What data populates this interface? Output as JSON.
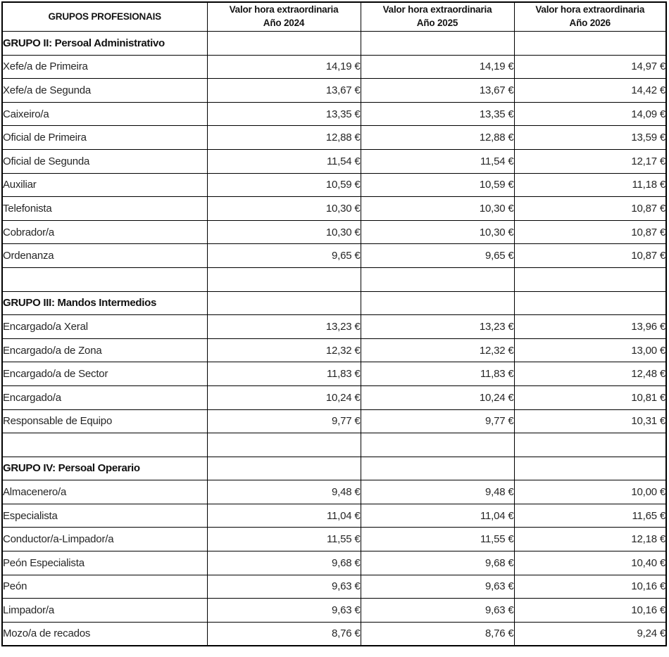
{
  "table": {
    "columns": [
      {
        "key": "profession",
        "line1": "GRUPOS PROFESIONAIS",
        "line2": ""
      },
      {
        "key": "y2024",
        "line1": "Valor hora extraordinaria",
        "line2": "Año 2024"
      },
      {
        "key": "y2025",
        "line1": "Valor hora extraordinaria",
        "line2": "Año 2025"
      },
      {
        "key": "y2026",
        "line1": "Valor hora extraordinaria",
        "line2": "Año 2026"
      }
    ],
    "rows": [
      {
        "type": "section",
        "label": "GRUPO II: Persoal Administrativo",
        "values": [
          "",
          "",
          ""
        ]
      },
      {
        "type": "data",
        "label": "Xefe/a de Primeira",
        "values": [
          "14,19 €",
          "14,19 €",
          "14,97 €"
        ]
      },
      {
        "type": "data",
        "label": "Xefe/a de Segunda",
        "values": [
          "13,67 €",
          "13,67 €",
          "14,42 €"
        ]
      },
      {
        "type": "data",
        "label": "Caixeiro/a",
        "values": [
          "13,35 €",
          "13,35 €",
          "14,09 €"
        ]
      },
      {
        "type": "data",
        "label": "Oficial de Primeira",
        "values": [
          "12,88 €",
          "12,88 €",
          "13,59 €"
        ]
      },
      {
        "type": "data",
        "label": "Oficial de Segunda",
        "values": [
          "11,54 €",
          "11,54 €",
          "12,17 €"
        ]
      },
      {
        "type": "data",
        "label": "Auxiliar",
        "values": [
          "10,59 €",
          "10,59 €",
          "11,18 €"
        ]
      },
      {
        "type": "data",
        "label": "Telefonista",
        "values": [
          "10,30 €",
          "10,30 €",
          "10,87 €"
        ]
      },
      {
        "type": "data",
        "label": "Cobrador/a",
        "values": [
          "10,30 €",
          "10,30 €",
          "10,87 €"
        ]
      },
      {
        "type": "data",
        "label": "Ordenanza",
        "values": [
          "9,65 €",
          "9,65 €",
          "10,87 €"
        ]
      },
      {
        "type": "spacer",
        "label": "",
        "values": [
          "",
          "",
          ""
        ]
      },
      {
        "type": "section",
        "label": "GRUPO III: Mandos Intermedios",
        "values": [
          "",
          "",
          ""
        ]
      },
      {
        "type": "data",
        "label": "Encargado/a Xeral",
        "values": [
          "13,23 €",
          "13,23 €",
          "13,96 €"
        ]
      },
      {
        "type": "data",
        "label": "Encargado/a de Zona",
        "values": [
          "12,32 €",
          "12,32 €",
          "13,00 €"
        ]
      },
      {
        "type": "data",
        "label": "Encargado/a de Sector",
        "values": [
          "11,83 €",
          "11,83 €",
          "12,48 €"
        ]
      },
      {
        "type": "data",
        "label": "Encargado/a",
        "values": [
          "10,24 €",
          "10,24 €",
          "10,81 €"
        ]
      },
      {
        "type": "data",
        "label": "Responsable de Equipo",
        "values": [
          "9,77 €",
          "9,77 €",
          "10,31 €"
        ]
      },
      {
        "type": "spacer",
        "label": "",
        "values": [
          "",
          "",
          ""
        ]
      },
      {
        "type": "section",
        "label": "GRUPO IV: Persoal Operario",
        "values": [
          "",
          "",
          ""
        ]
      },
      {
        "type": "data",
        "label": "Almacenero/a",
        "values": [
          "9,48 €",
          "9,48 €",
          "10,00 €"
        ]
      },
      {
        "type": "data",
        "label": "Especialista",
        "values": [
          "11,04 €",
          "11,04 €",
          "11,65 €"
        ]
      },
      {
        "type": "data",
        "label": "Conductor/a-Limpador/a",
        "values": [
          "11,55 €",
          "11,55 €",
          "12,18 €"
        ]
      },
      {
        "type": "data",
        "label": "Peón Especialista",
        "values": [
          "9,68 €",
          "9,68 €",
          "10,40 €"
        ]
      },
      {
        "type": "data",
        "label": "Peón",
        "values": [
          "9,63 €",
          "9,63 €",
          "10,16 €"
        ]
      },
      {
        "type": "data",
        "label": "Limpador/a",
        "values": [
          "9,63 €",
          "9,63 €",
          "10,16 €"
        ]
      },
      {
        "type": "data",
        "label": "Mozo/a de recados",
        "values": [
          "8,76 €",
          "8,76 €",
          "9,24 €"
        ]
      }
    ],
    "colors": {
      "border": "#000000",
      "text_body": "#262626",
      "text_header": "#141414",
      "background": "#ffffff"
    }
  }
}
